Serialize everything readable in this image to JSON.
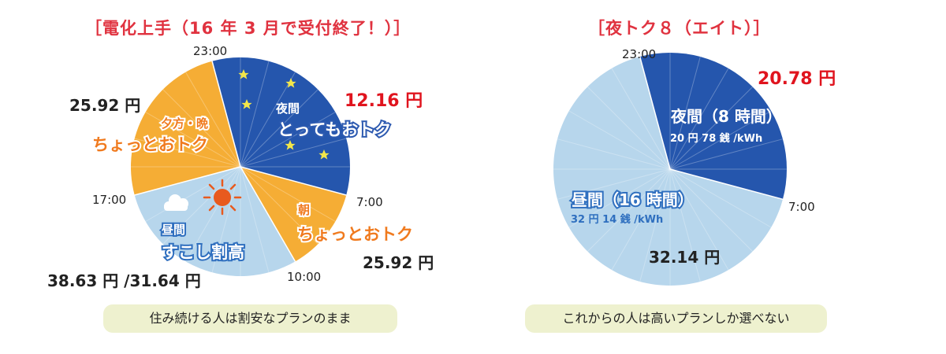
{
  "chart_data": [
    {
      "type": "pie",
      "title": "［電化上手（16 年 3 月で受付終了！）］",
      "time_labels": [
        "23:00",
        "7:00",
        "10:00",
        "17:00"
      ],
      "slices": [
        {
          "name": "夜間",
          "tagline": "とってもおトク",
          "start": "23:00",
          "end": "7:00",
          "hours": 8,
          "price": "12.16 円",
          "color": "#2556ad"
        },
        {
          "name": "朝",
          "tagline": "ちょっとおトク",
          "start": "7:00",
          "end": "10:00",
          "hours": 3,
          "price": "25.92 円",
          "color": "#f5ad35"
        },
        {
          "name": "昼間",
          "tagline": "すこし割高",
          "start": "10:00",
          "end": "17:00",
          "hours": 7,
          "price": "38.63 円 /31.64 円",
          "color": "#b7d6ec"
        },
        {
          "name": "夕方・晩",
          "tagline": "ちょっとおトク",
          "start": "17:00",
          "end": "23:00",
          "hours": 6,
          "price": "25.92 円",
          "color": "#f5ad35"
        }
      ],
      "caption": "住み続ける人は割安なプランのまま"
    },
    {
      "type": "pie",
      "title": "［夜トク８（エイト）］",
      "time_labels": [
        "23:00",
        "7:00"
      ],
      "slices": [
        {
          "name": "夜間（8 時間）",
          "sub": "20 円 78 銭 /kWh",
          "start": "23:00",
          "end": "7:00",
          "hours": 8,
          "price": "20.78 円",
          "color": "#2556ad"
        },
        {
          "name": "昼間（16 時間）",
          "sub": "32 円 14 銭 /kWh",
          "start": "7:00",
          "end": "23:00",
          "hours": 16,
          "price": "32.14 円",
          "color": "#b7d6ec"
        }
      ],
      "caption": "これからの人は高いプランしか選べない"
    }
  ],
  "icons": [
    "star-icon",
    "crescent-moon-icon",
    "sun-icon",
    "cloud-icon"
  ]
}
